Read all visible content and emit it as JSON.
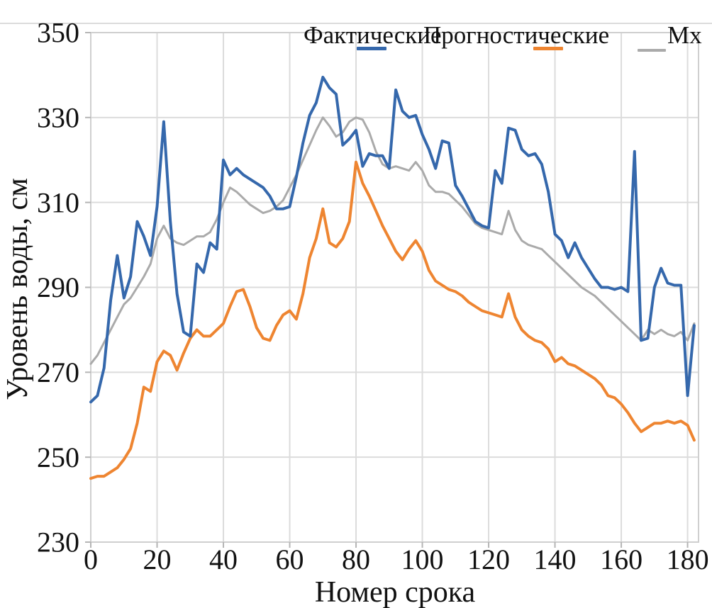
{
  "figure": {
    "background": "#ffffff",
    "gridline_color": "#dcdcdc",
    "border_color": "#cfcfcf",
    "tick_color": "#b5b5b5",
    "text_color": "#111111"
  },
  "chart_data": {
    "type": "line",
    "title": "",
    "xlabel": "Номер срока",
    "ylabel": "Уровень воды, см",
    "xlim": [
      0,
      183.3
    ],
    "ylim": [
      230,
      350
    ],
    "x_ticks": [
      0,
      20,
      40,
      60,
      80,
      100,
      120,
      140,
      160,
      180
    ],
    "y_ticks": [
      230,
      250,
      270,
      290,
      310,
      330,
      350
    ],
    "grid": true,
    "legend_position": "top",
    "x": [
      0,
      2,
      4,
      6,
      8,
      10,
      12,
      14,
      16,
      18,
      20,
      22,
      24,
      26,
      28,
      30,
      32,
      34,
      36,
      38,
      40,
      42,
      44,
      46,
      48,
      50,
      52,
      54,
      56,
      58,
      60,
      62,
      64,
      66,
      68,
      70,
      72,
      74,
      76,
      78,
      80,
      82,
      84,
      86,
      88,
      90,
      92,
      94,
      96,
      98,
      100,
      102,
      104,
      106,
      108,
      110,
      112,
      114,
      116,
      118,
      120,
      122,
      124,
      126,
      128,
      130,
      132,
      134,
      136,
      138,
      140,
      142,
      144,
      146,
      148,
      150,
      152,
      154,
      156,
      158,
      160,
      162,
      164,
      166,
      168,
      170,
      172,
      174,
      176,
      178,
      180,
      182
    ],
    "series": [
      {
        "name": "Фактические",
        "color": "#3568ac",
        "values": [
          263,
          264.5,
          271,
          287,
          297.5,
          287.5,
          292.5,
          305.5,
          302,
          297.5,
          309,
          329,
          305.5,
          288.5,
          279.5,
          278.5,
          295.5,
          293.5,
          300.5,
          299,
          320,
          316.5,
          318,
          316.5,
          315.5,
          314.5,
          313.5,
          311.5,
          308.5,
          308.5,
          309,
          316,
          324,
          330.5,
          333.5,
          339.5,
          337,
          335.5,
          323.5,
          325,
          327,
          318.5,
          321.5,
          321,
          321,
          318,
          336.5,
          331.5,
          330,
          330.5,
          326,
          322.5,
          318,
          324.5,
          324,
          314,
          311.5,
          308.5,
          305.5,
          304.5,
          304,
          317.5,
          314.5,
          327.5,
          327,
          322.5,
          321,
          321.5,
          319,
          312.5,
          302.5,
          301,
          297,
          300.5,
          297,
          294.5,
          292,
          290,
          290,
          289.5,
          290,
          289,
          322,
          277.5,
          278,
          290,
          294.5,
          291,
          290.5,
          290.5,
          264.5,
          281
        ]
      },
      {
        "name": "Прогностические",
        "color": "#ee8531",
        "values": [
          245,
          245.5,
          245.5,
          246.5,
          247.5,
          249.5,
          252,
          258,
          266.5,
          265.5,
          272.5,
          275,
          274,
          270.5,
          274.5,
          278,
          280,
          278.5,
          278.5,
          280,
          281.5,
          285.5,
          289,
          289.5,
          285.5,
          280.5,
          278,
          277.5,
          281,
          283.5,
          284.5,
          282.5,
          288.5,
          297,
          301.5,
          308.5,
          300.5,
          299.5,
          301.5,
          305.5,
          319.5,
          314.5,
          311.5,
          308,
          304.5,
          301.5,
          298.5,
          296.5,
          299,
          301,
          298.5,
          294,
          291.5,
          290.5,
          289.5,
          289,
          288,
          286.5,
          285.5,
          284.5,
          284,
          283.5,
          283,
          288.5,
          283,
          280,
          278.5,
          277.5,
          277,
          275.5,
          272.5,
          273.5,
          272,
          271.5,
          270.5,
          269.5,
          268.5,
          267,
          264.5,
          264,
          262.5,
          260.5,
          258,
          256,
          257,
          258,
          258,
          258.5,
          258,
          258.5,
          257.5,
          254
        ]
      },
      {
        "name": "Мх",
        "color": "#aaaaaa",
        "values": [
          272,
          274,
          277,
          280,
          283,
          286,
          287.5,
          290,
          292.5,
          295.5,
          301.5,
          304.5,
          301.5,
          300.5,
          300,
          301,
          302,
          302,
          303,
          306,
          310,
          313.5,
          312.5,
          311,
          309.5,
          308.5,
          307.5,
          308,
          309,
          310.5,
          313.5,
          316.5,
          320,
          323.5,
          327,
          330,
          328,
          325.5,
          326.5,
          329,
          330,
          329.5,
          326.5,
          322,
          319,
          318,
          318.5,
          318,
          317.5,
          319.5,
          317.5,
          314,
          312.5,
          312.5,
          312,
          310.5,
          309,
          307,
          305,
          304,
          303.5,
          303,
          302.5,
          308,
          303.5,
          301,
          300,
          299.5,
          299,
          297.5,
          296,
          294.5,
          293,
          291.5,
          290,
          289,
          288,
          286.5,
          285,
          283.5,
          282,
          280.5,
          279,
          277.5,
          280,
          279,
          280,
          279,
          278.5,
          279.5,
          277.5,
          281.5
        ]
      }
    ]
  }
}
